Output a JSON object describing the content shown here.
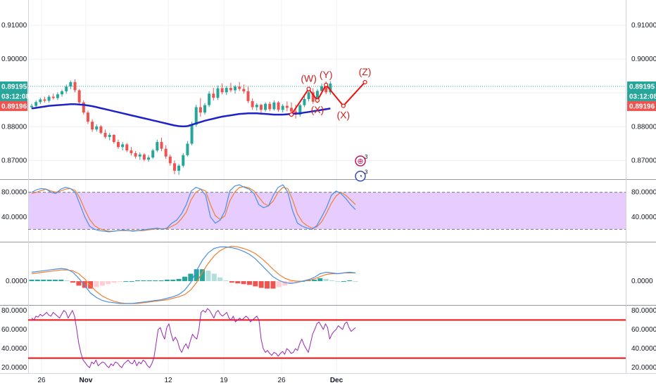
{
  "chart_data": {
    "type": "candlestick",
    "colors": {
      "up": "#26a69a",
      "down": "#ef5350",
      "moving_average": "#1e22c8",
      "wave_line": "#ee1111",
      "wave_label": "#cc2222",
      "current_price_badge": "#26a69a",
      "bid_badge": "#ef5350",
      "stoch_band_fill": "#e6ccff",
      "stoch_k": "#4a90e2",
      "stoch_d": "#f08030",
      "macd_line": "#4a90e2",
      "signal_line": "#f08030",
      "hist_pos_strong": "#26a69a",
      "hist_pos_weak": "#b2dfdb",
      "hist_neg_strong": "#ef5350",
      "hist_neg_weak": "#ffcdd2",
      "rsi_line": "#9c27b0",
      "rsi_bound": "#ee1111"
    },
    "x_ticks": [
      "26",
      "Nov",
      "12",
      "19",
      "26",
      "Dec"
    ],
    "price_panel": {
      "ylim": [
        0.8645,
        0.9175
      ],
      "y_ticks": [
        0.87,
        0.88,
        0.89,
        0.9,
        0.91
      ],
      "y_tick_labels": [
        "0.87000",
        "0.88000",
        "0.89000",
        "0.90000",
        "0.91000"
      ],
      "current_price": 0.89195,
      "current_price_label": "0.89195",
      "countdown_label": "03:12:08",
      "bid_label": "0.89196",
      "ohlc": [
        [
          0.8858,
          0.8868,
          0.8853,
          0.8862
        ],
        [
          0.8862,
          0.8878,
          0.8858,
          0.8873
        ],
        [
          0.8873,
          0.8886,
          0.8867,
          0.8881
        ],
        [
          0.8881,
          0.8889,
          0.8872,
          0.8877
        ],
        [
          0.8877,
          0.8894,
          0.8871,
          0.8889
        ],
        [
          0.8889,
          0.8898,
          0.8881,
          0.8885
        ],
        [
          0.8885,
          0.8902,
          0.8879,
          0.8896
        ],
        [
          0.8896,
          0.891,
          0.8889,
          0.8905
        ],
        [
          0.8905,
          0.8925,
          0.8898,
          0.8919
        ],
        [
          0.8919,
          0.8937,
          0.8911,
          0.8932
        ],
        [
          0.8932,
          0.894,
          0.8902,
          0.8908
        ],
        [
          0.8908,
          0.8912,
          0.8866,
          0.8872
        ],
        [
          0.8872,
          0.8878,
          0.8836,
          0.8842
        ],
        [
          0.8842,
          0.8848,
          0.8808,
          0.8815
        ],
        [
          0.8815,
          0.8822,
          0.8785,
          0.8792
        ],
        [
          0.8792,
          0.8807,
          0.8786,
          0.8801
        ],
        [
          0.8801,
          0.8805,
          0.8778,
          0.8782
        ],
        [
          0.8782,
          0.8792,
          0.8765,
          0.877
        ],
        [
          0.877,
          0.8782,
          0.876,
          0.8776
        ],
        [
          0.8776,
          0.8778,
          0.875,
          0.8755
        ],
        [
          0.8755,
          0.8762,
          0.8735,
          0.874
        ],
        [
          0.874,
          0.8755,
          0.873,
          0.8748
        ],
        [
          0.8748,
          0.8752,
          0.8725,
          0.873
        ],
        [
          0.873,
          0.874,
          0.8715,
          0.8722
        ],
        [
          0.8722,
          0.8728,
          0.8706,
          0.8712
        ],
        [
          0.8712,
          0.8724,
          0.8702,
          0.8718
        ],
        [
          0.8718,
          0.8722,
          0.8698,
          0.8703
        ],
        [
          0.8703,
          0.8716,
          0.8697,
          0.8709
        ],
        [
          0.8709,
          0.8735,
          0.8705,
          0.873
        ],
        [
          0.873,
          0.8762,
          0.8725,
          0.8755
        ],
        [
          0.8755,
          0.8768,
          0.8728,
          0.8735
        ],
        [
          0.8735,
          0.8745,
          0.8705,
          0.8712
        ],
        [
          0.8712,
          0.8718,
          0.8685,
          0.8692
        ],
        [
          0.8692,
          0.87,
          0.866,
          0.867
        ],
        [
          0.867,
          0.869,
          0.8658,
          0.8685
        ],
        [
          0.8685,
          0.8722,
          0.868,
          0.8716
        ],
        [
          0.8716,
          0.8758,
          0.8712,
          0.875
        ],
        [
          0.875,
          0.8815,
          0.8745,
          0.8806
        ],
        [
          0.8806,
          0.8865,
          0.88,
          0.8858
        ],
        [
          0.8858,
          0.8885,
          0.883,
          0.8842
        ],
        [
          0.8842,
          0.887,
          0.8836,
          0.8864
        ],
        [
          0.8864,
          0.8905,
          0.8858,
          0.8898
        ],
        [
          0.8898,
          0.8915,
          0.8878,
          0.8886
        ],
        [
          0.8886,
          0.8922,
          0.888,
          0.8914
        ],
        [
          0.8914,
          0.8928,
          0.8896,
          0.8902
        ],
        [
          0.8902,
          0.892,
          0.8894,
          0.8915
        ],
        [
          0.8915,
          0.893,
          0.8902,
          0.8908
        ],
        [
          0.8908,
          0.8924,
          0.8898,
          0.8919
        ],
        [
          0.8919,
          0.8932,
          0.8906,
          0.8912
        ],
        [
          0.8912,
          0.8925,
          0.8898,
          0.8905
        ],
        [
          0.8905,
          0.8918,
          0.887,
          0.8876
        ],
        [
          0.8876,
          0.8884,
          0.885,
          0.8858
        ],
        [
          0.8858,
          0.887,
          0.8848,
          0.8865
        ],
        [
          0.8865,
          0.8868,
          0.8842,
          0.885
        ],
        [
          0.885,
          0.8872,
          0.8845,
          0.8868
        ],
        [
          0.8868,
          0.8874,
          0.8846,
          0.8852
        ],
        [
          0.8852,
          0.8878,
          0.8848,
          0.8872
        ],
        [
          0.8872,
          0.8876,
          0.8844,
          0.885
        ],
        [
          0.885,
          0.8868,
          0.8842,
          0.8862
        ],
        [
          0.8862,
          0.8875,
          0.8846,
          0.8856
        ],
        [
          0.8856,
          0.8872,
          0.884,
          0.8845
        ],
        [
          0.8845,
          0.8865,
          0.8824,
          0.8836
        ],
        [
          0.8836,
          0.8868,
          0.883,
          0.8864
        ],
        [
          0.8864,
          0.889,
          0.8858,
          0.8882
        ],
        [
          0.8882,
          0.8908,
          0.8875,
          0.8902
        ],
        [
          0.8902,
          0.8914,
          0.8868,
          0.8874
        ],
        [
          0.8874,
          0.8912,
          0.887,
          0.8906
        ],
        [
          0.8906,
          0.8928,
          0.8898,
          0.892
        ],
        [
          0.892,
          0.8934,
          0.8896,
          0.8902
        ],
        [
          0.8902,
          0.8935,
          0.8895,
          0.8928
        ]
      ],
      "moving_average": [
        0.8854,
        0.8856,
        0.8858,
        0.886,
        0.8862,
        0.8863,
        0.8864,
        0.8865,
        0.8866,
        0.8867,
        0.8867,
        0.8866,
        0.8865,
        0.8863,
        0.8861,
        0.8858,
        0.8855,
        0.8852,
        0.8849,
        0.8846,
        0.8843,
        0.884,
        0.8837,
        0.8834,
        0.8831,
        0.8828,
        0.8825,
        0.8822,
        0.8819,
        0.8816,
        0.8813,
        0.881,
        0.8807,
        0.8804,
        0.8802,
        0.8801,
        0.8802,
        0.8806,
        0.881,
        0.8814,
        0.8818,
        0.8821,
        0.8824,
        0.8827,
        0.883,
        0.8832,
        0.8834,
        0.8836,
        0.8838,
        0.8839,
        0.884,
        0.884,
        0.884,
        0.8839,
        0.8838,
        0.8837,
        0.8836,
        0.8836,
        0.8836,
        0.8837,
        0.8838,
        0.8839,
        0.884,
        0.8842,
        0.8844,
        0.8846,
        0.8848,
        0.885,
        0.8852,
        0.8854
      ],
      "wave_points": [
        {
          "bar": 60,
          "price": 0.8836
        },
        {
          "bar": 64,
          "price": 0.8912,
          "label": "(W)"
        },
        {
          "bar": 66,
          "price": 0.8878,
          "label": "(X)"
        },
        {
          "bar": 68,
          "price": 0.8924,
          "label": "(Y)"
        },
        {
          "bar": 72,
          "price": 0.8862,
          "label": "(X)"
        },
        {
          "bar": 77,
          "price": 0.8932,
          "label": "(Z)"
        }
      ],
      "event_badges": [
        {
          "glyph": "⊕",
          "count": "3",
          "color": "#c2185b",
          "price": 0.8699
        },
        {
          "glyph": "◔",
          "count": "3",
          "color": "#3949ab",
          "price": 0.8654
        }
      ]
    },
    "stoch_panel": {
      "ylim": [
        0,
        100
      ],
      "y_ticks": [
        40,
        80
      ],
      "y_tick_labels": [
        "40.0000",
        "80.0000"
      ],
      "band": [
        20,
        80
      ],
      "k": [
        80,
        84,
        86,
        85,
        80,
        78,
        85,
        88,
        86,
        80,
        60,
        40,
        25,
        20,
        18,
        17,
        16,
        17,
        18,
        19,
        18,
        17,
        18,
        19,
        20,
        21,
        22,
        20,
        22,
        30,
        35,
        45,
        60,
        82,
        88,
        85,
        75,
        40,
        30,
        35,
        50,
        82,
        90,
        92,
        88,
        85,
        78,
        60,
        55,
        58,
        75,
        88,
        92,
        80,
        50,
        30,
        25,
        22,
        20,
        26,
        40,
        55,
        75,
        82,
        78,
        70,
        60,
        52
      ],
      "d": [
        78,
        80,
        83,
        85,
        82,
        80,
        82,
        85,
        86,
        83,
        70,
        52,
        36,
        26,
        21,
        19,
        17,
        17,
        18,
        18,
        18,
        18,
        18,
        18,
        19,
        20,
        21,
        21,
        21,
        25,
        29,
        37,
        48,
        68,
        80,
        85,
        82,
        60,
        42,
        36,
        42,
        66,
        80,
        88,
        89,
        87,
        82,
        72,
        62,
        58,
        66,
        80,
        88,
        86,
        68,
        45,
        32,
        26,
        22,
        24,
        32,
        46,
        62,
        74,
        80,
        75,
        68,
        60
      ]
    },
    "macd_panel": {
      "ylim": [
        -0.0032,
        0.0052
      ],
      "y_ticks": [
        0
      ],
      "y_tick_labels": [
        "0.0000"
      ],
      "macd": [
        0.0012,
        0.0013,
        0.0014,
        0.0015,
        0.0016,
        0.0017,
        0.0016,
        0.0012,
        0.0004,
        -0.0006,
        -0.0016,
        -0.0022,
        -0.0026,
        -0.0028,
        -0.0029,
        -0.003,
        -0.003,
        -0.003,
        -0.0029,
        -0.0028,
        -0.0027,
        -0.0026,
        -0.0025,
        -0.0023,
        -0.0021,
        -0.0018,
        -0.0012,
        -0.0002,
        0.0014,
        0.0028,
        0.0038,
        0.0044,
        0.0046,
        0.0046,
        0.0045,
        0.0043,
        0.004,
        0.0036,
        0.003,
        0.0022,
        0.0014,
        0.0006,
        0.0001,
        -0.0002,
        -0.0003,
        -0.0002,
        0.0,
        0.0002,
        0.0005,
        0.001,
        0.0012,
        0.0011,
        0.001,
        0.0011,
        0.0012,
        0.0011
      ],
      "signal": [
        0.001,
        0.0011,
        0.0012,
        0.0013,
        0.0014,
        0.0015,
        0.0015,
        0.0014,
        0.001,
        0.0003,
        -0.0006,
        -0.0014,
        -0.002,
        -0.0024,
        -0.0027,
        -0.0029,
        -0.003,
        -0.003,
        -0.003,
        -0.0029,
        -0.0028,
        -0.0027,
        -0.0026,
        -0.0025,
        -0.0023,
        -0.0021,
        -0.0018,
        -0.0012,
        -0.0002,
        0.0012,
        0.0024,
        0.0034,
        0.0041,
        0.0045,
        0.0047,
        0.0046,
        0.0044,
        0.0041,
        0.0037,
        0.0031,
        0.0024,
        0.0016,
        0.0009,
        0.0004,
        0.0001,
        0.0,
        0.0,
        0.0001,
        0.0003,
        0.0006,
        0.0009,
        0.001,
        0.001,
        0.0011,
        0.0011,
        0.0011
      ],
      "histogram": [
        0.0002,
        0.0002,
        0.0002,
        0.0002,
        0.0002,
        0.0002,
        0.0001,
        -0.0002,
        -0.0006,
        -0.0009,
        -0.001,
        -0.0008,
        -0.0006,
        -0.0004,
        -0.0002,
        -0.0001,
        0,
        0,
        0.0001,
        0.0001,
        0.0001,
        0.0001,
        0.0001,
        0.0002,
        0.0002,
        0.0003,
        0.0006,
        0.001,
        0.0016,
        0.0016,
        0.0014,
        0.001,
        0.0005,
        0.0001,
        -0.0002,
        -0.0003,
        -0.0004,
        -0.0005,
        -0.0007,
        -0.0009,
        -0.001,
        -0.001,
        -0.0008,
        -0.0006,
        -0.0004,
        -0.0002,
        0,
        0.0001,
        0.0002,
        0.0004,
        0.0003,
        0.0001,
        0,
        0,
        0.0001,
        0
      ]
    },
    "rsi_panel": {
      "ylim": [
        15,
        85
      ],
      "y_ticks": [
        20,
        40,
        60,
        80
      ],
      "y_tick_labels": [
        "20.0000",
        "40.0000",
        "60.0000",
        "80.0000"
      ],
      "bounds": [
        70,
        30
      ],
      "values": [
        72,
        70,
        74,
        73,
        76,
        74,
        76,
        78,
        75,
        74,
        78,
        76,
        74,
        72,
        76,
        80,
        78,
        72,
        76,
        80,
        74,
        60,
        45,
        35,
        28,
        25,
        22,
        20,
        26,
        24,
        28,
        22,
        24,
        26,
        25,
        22,
        20,
        24,
        22,
        26,
        25,
        22,
        20,
        24,
        26,
        28,
        25,
        24,
        28,
        22,
        26,
        24,
        28,
        26,
        22,
        20,
        24,
        30,
        45,
        60,
        62,
        55,
        50,
        62,
        66,
        56,
        48,
        52,
        48,
        40,
        36,
        42,
        45,
        40,
        48,
        55,
        52,
        50,
        60,
        78,
        80,
        78,
        82,
        80,
        76,
        72,
        78,
        80,
        76,
        74,
        76,
        78,
        72,
        70,
        74,
        68,
        70,
        72,
        70,
        72,
        74,
        72,
        68,
        70,
        72,
        74,
        70,
        50,
        40,
        36,
        38,
        35,
        33,
        36,
        35,
        32,
        35,
        37,
        34,
        40,
        38,
        35,
        36,
        40,
        38,
        45,
        50,
        44,
        40,
        36,
        45,
        55,
        60,
        66,
        68,
        64,
        60,
        66,
        62,
        50,
        55,
        58,
        60,
        64,
        62,
        60,
        66,
        68,
        62,
        58,
        60,
        62
      ]
    }
  }
}
